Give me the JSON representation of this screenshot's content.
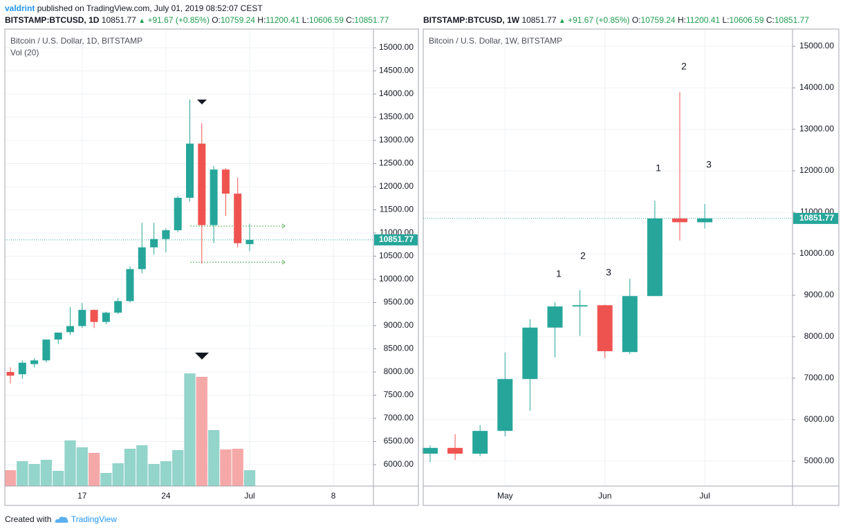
{
  "header": {
    "author": "valdrint",
    "published": "published on TradingView.com, July 01, 2019 08:52:07 CEST",
    "quotes": [
      {
        "symbol": "BITSTAMP:BTCUSD, 1D",
        "price": "10851.77",
        "change": "+91.67 (+0.85%)",
        "fields": [
          {
            "label": "O:",
            "value": "10759.24"
          },
          {
            "label": "H:",
            "value": "11200.41"
          },
          {
            "label": "L:",
            "value": "10606.59"
          },
          {
            "label": "C:",
            "value": "10851.77"
          }
        ]
      },
      {
        "symbol": "BITSTAMP:BTCUSD, 1W",
        "price": "10851.77",
        "change": "+91.67 (+0.85%)",
        "fields": [
          {
            "label": "O:",
            "value": "10759.24"
          },
          {
            "label": "H:",
            "value": "11200.41"
          },
          {
            "label": "L:",
            "value": "10606.59"
          },
          {
            "label": "C:",
            "value": "10851.77"
          }
        ]
      }
    ]
  },
  "footer": {
    "created": "Created with",
    "brand": "TradingView"
  },
  "chart_data": [
    {
      "type": "candlestick",
      "title": "Bitcoin / U.S. Dollar, 1D, BITSTAMP",
      "volume_label": "Vol (20)",
      "categories": [
        null,
        null,
        null,
        null,
        null,
        null,
        "17",
        null,
        null,
        null,
        null,
        null,
        null,
        "24",
        null,
        null,
        null,
        null,
        null,
        null,
        "Jul",
        null,
        null,
        null,
        null,
        null,
        null,
        "8",
        null,
        null,
        null
      ],
      "open": [
        8000,
        7950,
        8170,
        8250,
        8700,
        8860,
        8990,
        9340,
        9080,
        9280,
        9530,
        10220,
        10690,
        10870,
        11060,
        11760,
        12930,
        11170,
        12370,
        11850,
        10759.24,
        null,
        null,
        null,
        null,
        null,
        null,
        null,
        null,
        null,
        null
      ],
      "high": [
        8100,
        8250,
        8300,
        8700,
        8850,
        9400,
        9490,
        9350,
        9300,
        9600,
        10280,
        11220,
        11220,
        11100,
        11800,
        13880,
        13370,
        12450,
        12400,
        12200,
        11200.41,
        null,
        null,
        null,
        null,
        null,
        null,
        null,
        null,
        null,
        null
      ],
      "low": [
        7750,
        7850,
        8100,
        8200,
        8600,
        8800,
        8950,
        8950,
        9030,
        9250,
        9500,
        10130,
        10540,
        10580,
        11020,
        11680,
        10340,
        10780,
        11370,
        10690,
        10606.59,
        null,
        null,
        null,
        null,
        null,
        null,
        null,
        null,
        null,
        null
      ],
      "close": [
        7920,
        8200,
        8250,
        8700,
        8850,
        8990,
        9340,
        9080,
        9280,
        9530,
        10220,
        10690,
        10870,
        11060,
        11760,
        12930,
        11170,
        12370,
        11850,
        10780,
        10851.77,
        null,
        null,
        null,
        null,
        null,
        null,
        null,
        null,
        null,
        null
      ],
      "volume": [
        4600,
        7200,
        6400,
        7600,
        4400,
        13200,
        11200,
        9600,
        3800,
        6600,
        10800,
        11800,
        6400,
        7200,
        10400,
        32600,
        31600,
        16200,
        10600,
        10800,
        4600,
        null,
        null,
        null,
        null,
        null,
        null,
        null,
        null,
        null,
        null
      ],
      "up_color": "#26a69a",
      "down_color": "#ef5350",
      "volume_up_color": "#93d4cb",
      "volume_down_color": "#f5a8a8",
      "level_color": "#4caf50",
      "levels": [
        11150,
        10370
      ],
      "last_price": 10851.77,
      "ylim": [
        5537,
        15403
      ],
      "yticks": [
        {
          "value": 6000,
          "label": "6000.00"
        },
        {
          "value": 6500,
          "label": "6500.00"
        },
        {
          "value": 7000,
          "label": "7000.00"
        },
        {
          "value": 7500,
          "label": "7500.00"
        },
        {
          "value": 8000,
          "label": "8000.00"
        },
        {
          "value": 8500,
          "label": "8500.00"
        },
        {
          "value": 9000,
          "label": "9000.00"
        },
        {
          "value": 9500,
          "label": "9500.00"
        },
        {
          "value": 10000,
          "label": "10000.00"
        },
        {
          "value": 10500,
          "label": "10500.00"
        },
        {
          "value": 11000,
          "label": "11000.00"
        },
        {
          "value": 11500,
          "label": "11500.00"
        },
        {
          "value": 12000,
          "label": "12000.00"
        },
        {
          "value": 12500,
          "label": "12500.00"
        },
        {
          "value": 13000,
          "label": "13000.00"
        },
        {
          "value": 13500,
          "label": "13500.00"
        },
        {
          "value": 14000,
          "label": "14000.00"
        },
        {
          "value": 14500,
          "label": "14500.00"
        },
        {
          "value": 15000,
          "label": "15000.00"
        }
      ],
      "grid": true
    },
    {
      "type": "candlestick",
      "title": "Bitcoin / U.S. Dollar, 1W, BITSTAMP",
      "categories": [
        null,
        null,
        null,
        "May",
        null,
        null,
        null,
        "Jun",
        null,
        null,
        null,
        "Jul",
        null,
        null,
        null
      ],
      "open": [
        5180,
        5320,
        5180,
        5730,
        6980,
        8220,
        8730,
        8760,
        7630,
        8980,
        10850,
        10759.24,
        null,
        null,
        null
      ],
      "high": [
        5380,
        5650,
        5870,
        7620,
        8420,
        8830,
        9120,
        8770,
        9400,
        11280,
        13900,
        11200.41,
        null,
        null,
        null
      ],
      "low": [
        4980,
        5030,
        5120,
        5600,
        6220,
        7500,
        8020,
        7480,
        7580,
        8980,
        10320,
        10606.59,
        null,
        null,
        null
      ],
      "close": [
        5320,
        5180,
        5730,
        6980,
        8220,
        8730,
        8760,
        7650,
        8980,
        10850,
        10760,
        10851.77,
        null,
        null,
        null
      ],
      "up_color": "#26a69a",
      "down_color": "#ef5350",
      "annotations": [
        "1",
        "2",
        "3",
        "1",
        "2",
        "3"
      ],
      "last_price": 10851.77,
      "ylim": [
        4400,
        15417
      ],
      "yticks": [
        {
          "value": 5000,
          "label": "5000.00"
        },
        {
          "value": 6000,
          "label": "6000.00"
        },
        {
          "value": 7000,
          "label": "7000.00"
        },
        {
          "value": 8000,
          "label": "8000.00"
        },
        {
          "value": 9000,
          "label": "9000.00"
        },
        {
          "value": 10000,
          "label": "10000.00"
        },
        {
          "value": 11000,
          "label": "11000.00"
        },
        {
          "value": 12000,
          "label": "12000.00"
        },
        {
          "value": 13000,
          "label": "13000.00"
        },
        {
          "value": 14000,
          "label": "14000.00"
        },
        {
          "value": 15000,
          "label": "15000.00"
        }
      ],
      "grid": true
    }
  ]
}
